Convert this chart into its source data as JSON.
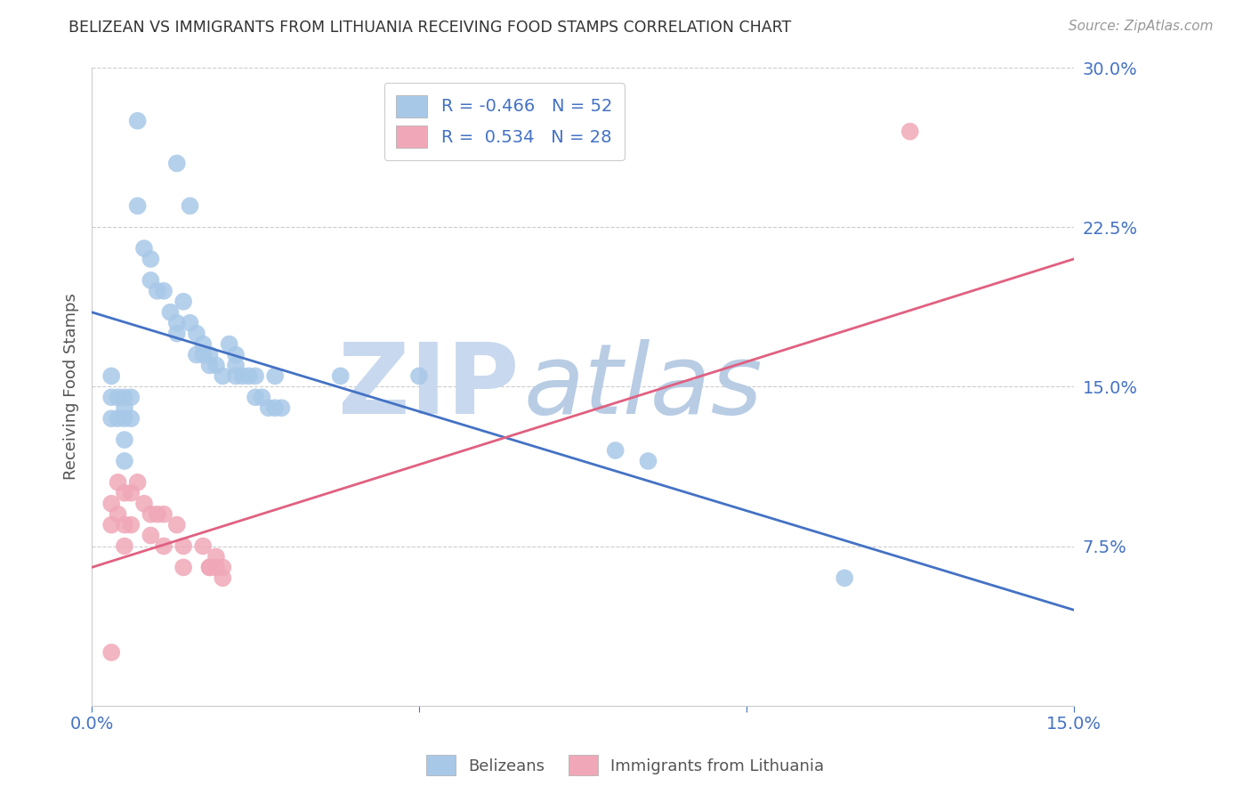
{
  "title": "BELIZEAN VS IMMIGRANTS FROM LITHUANIA RECEIVING FOOD STAMPS CORRELATION CHART",
  "source": "Source: ZipAtlas.com",
  "ylabel": "Receiving Food Stamps",
  "x_min": 0.0,
  "x_max": 0.15,
  "y_min": 0.0,
  "y_max": 0.3,
  "x_ticks": [
    0.0,
    0.05,
    0.1,
    0.15
  ],
  "x_tick_labels": [
    "0.0%",
    "",
    "",
    "15.0%"
  ],
  "y_ticks": [
    0.0,
    0.075,
    0.15,
    0.225,
    0.3
  ],
  "y_tick_labels": [
    "",
    "7.5%",
    "15.0%",
    "22.5%",
    "30.0%"
  ],
  "legend_entry_blue": "R = -0.466   N = 52",
  "legend_entry_pink": "R =  0.534   N = 28",
  "legend_labels_bottom": [
    "Belizeans",
    "Immigrants from Lithuania"
  ],
  "blue_scatter_x": [
    0.007,
    0.013,
    0.015,
    0.007,
    0.008,
    0.009,
    0.009,
    0.01,
    0.011,
    0.012,
    0.013,
    0.013,
    0.014,
    0.015,
    0.016,
    0.016,
    0.017,
    0.017,
    0.018,
    0.018,
    0.019,
    0.02,
    0.021,
    0.022,
    0.022,
    0.022,
    0.023,
    0.024,
    0.025,
    0.025,
    0.026,
    0.027,
    0.028,
    0.028,
    0.029,
    0.003,
    0.003,
    0.003,
    0.004,
    0.004,
    0.005,
    0.005,
    0.005,
    0.005,
    0.005,
    0.006,
    0.006,
    0.038,
    0.05,
    0.08,
    0.085,
    0.115
  ],
  "blue_scatter_y": [
    0.275,
    0.255,
    0.235,
    0.235,
    0.215,
    0.21,
    0.2,
    0.195,
    0.195,
    0.185,
    0.18,
    0.175,
    0.19,
    0.18,
    0.175,
    0.165,
    0.17,
    0.165,
    0.165,
    0.16,
    0.16,
    0.155,
    0.17,
    0.165,
    0.16,
    0.155,
    0.155,
    0.155,
    0.155,
    0.145,
    0.145,
    0.14,
    0.14,
    0.155,
    0.14,
    0.155,
    0.145,
    0.135,
    0.145,
    0.135,
    0.145,
    0.14,
    0.135,
    0.125,
    0.115,
    0.145,
    0.135,
    0.155,
    0.155,
    0.12,
    0.115,
    0.06
  ],
  "pink_scatter_x": [
    0.003,
    0.003,
    0.004,
    0.004,
    0.005,
    0.005,
    0.005,
    0.006,
    0.006,
    0.007,
    0.008,
    0.009,
    0.009,
    0.01,
    0.011,
    0.011,
    0.013,
    0.014,
    0.014,
    0.017,
    0.018,
    0.018,
    0.019,
    0.019,
    0.02,
    0.02,
    0.003,
    0.125
  ],
  "pink_scatter_y": [
    0.095,
    0.085,
    0.105,
    0.09,
    0.1,
    0.085,
    0.075,
    0.1,
    0.085,
    0.105,
    0.095,
    0.09,
    0.08,
    0.09,
    0.09,
    0.075,
    0.085,
    0.075,
    0.065,
    0.075,
    0.065,
    0.065,
    0.07,
    0.065,
    0.065,
    0.06,
    0.025,
    0.27
  ],
  "blue_line_x": [
    0.0,
    0.15
  ],
  "blue_line_y": [
    0.185,
    0.045
  ],
  "pink_line_x": [
    0.0,
    0.15
  ],
  "pink_line_y": [
    0.065,
    0.21
  ],
  "blue_line_color": "#4472c4",
  "pink_line_color": "#e06080",
  "scatter_blue": "#a8c8e8",
  "scatter_pink": "#f0a8b8",
  "grid_color": "#cccccc",
  "background_color": "#ffffff",
  "tick_color": "#4472c4",
  "watermark_zip": "ZIP",
  "watermark_atlas": "atlas",
  "watermark_zip_color": "#c8d8ee",
  "watermark_atlas_color": "#b8cce4"
}
